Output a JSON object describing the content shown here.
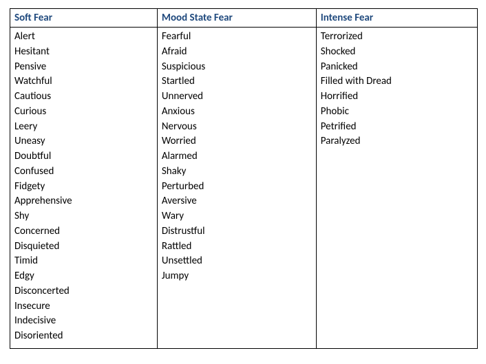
{
  "table": {
    "header_color": "#1f497d",
    "border_color": "#000000",
    "background_color": "#ffffff",
    "font_family": "Calibri",
    "header_fontsize": 15,
    "cell_fontsize": 15,
    "columns": [
      {
        "header": "Soft Fear",
        "items": [
          "Alert",
          "Hesitant",
          "Pensive",
          "Watchful",
          "Cautious",
          "Curious",
          "Leery",
          "Uneasy",
          "Doubtful",
          "Confused",
          "Fidgety",
          "Apprehensive",
          "Shy",
          "Concerned",
          "Disquieted",
          "Timid",
          "Edgy",
          "Disconcerted",
          "Insecure",
          "Indecisive",
          "Disoriented"
        ]
      },
      {
        "header": "Mood State Fear",
        "items": [
          "Fearful",
          "Afraid",
          "Suspicious",
          "Startled",
          "Unnerved",
          "Anxious",
          "Nervous",
          "Worried",
          "Alarmed",
          "Shaky",
          "Perturbed",
          "Aversive",
          "Wary",
          "Distrustful",
          "Rattled",
          "Unsettled",
          "Jumpy"
        ]
      },
      {
        "header": "Intense Fear",
        "items": [
          "Terrorized",
          "Shocked",
          "Panicked",
          "Filled with Dread",
          "Horrified",
          "Phobic",
          "Petrified",
          "Paralyzed"
        ]
      }
    ]
  }
}
